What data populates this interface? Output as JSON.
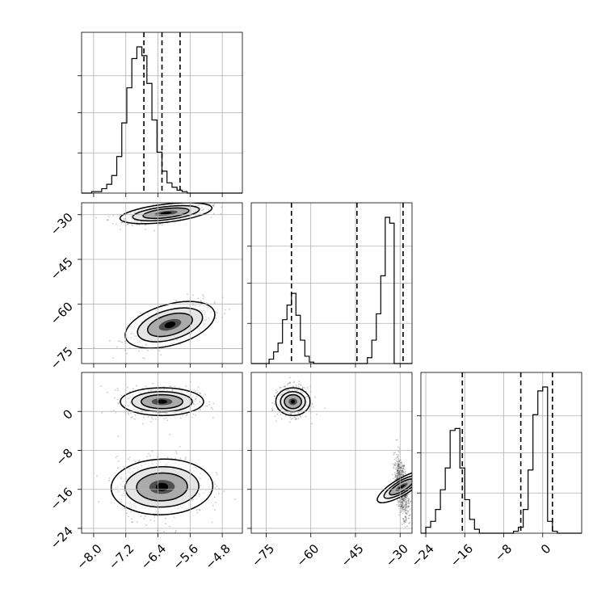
{
  "chart_data": {
    "type": "corner",
    "title": "",
    "parameters": [
      {
        "ticks": [
          -8.0,
          -7.2,
          -6.4,
          -5.6,
          -4.8
        ],
        "range": [
          -8.3,
          -4.3
        ]
      },
      {
        "ticks": [
          -75,
          -60,
          -45,
          -30
        ],
        "range": [
          -80,
          -26
        ]
      },
      {
        "ticks": [
          -24,
          -16,
          -8,
          0
        ],
        "range": [
          -25,
          8
        ]
      }
    ],
    "tick_labels": {
      "p0": [
        "−8.0",
        "−7.2",
        "−6.4",
        "−5.6",
        "−4.8"
      ],
      "p1": [
        "−75",
        "−60",
        "−45",
        "−30"
      ],
      "p2": [
        "−24",
        "−16",
        "−8",
        "0"
      ]
    },
    "quantiles": {
      "p0": [
        -6.75,
        -6.3,
        -5.85
      ],
      "p1": [
        -66.5,
        -44.5,
        -29.0
      ],
      "p2": [
        -16.5,
        -4.5,
        2.0
      ]
    },
    "histograms": [
      {
        "param": 0,
        "bins": [
          -8.3,
          -4.3
        ],
        "counts": [
          0,
          0,
          1,
          1,
          3,
          6,
          12,
          25,
          48,
          72,
          92,
          100,
          94,
          75,
          50,
          28,
          15,
          7,
          4,
          2,
          1,
          0,
          0,
          0,
          0,
          0,
          0,
          0,
          0,
          0,
          0,
          0
        ]
      },
      {
        "param": 1,
        "bins": [
          -80,
          -26
        ],
        "counts": [
          0,
          0,
          0,
          0,
          3,
          8,
          14,
          30,
          40,
          48,
          33,
          16,
          5,
          1,
          0,
          0,
          0,
          0,
          0,
          0,
          0,
          0,
          0,
          0,
          0,
          0,
          4,
          16,
          34,
          60,
          100,
          96,
          0,
          0,
          0,
          0
        ]
      },
      {
        "param": 2,
        "bins": [
          -25,
          8
        ],
        "counts": [
          0,
          3,
          6,
          12,
          22,
          33,
          52,
          53,
          33,
          17,
          7,
          2,
          0,
          0,
          0,
          0,
          0,
          0,
          0,
          1,
          3,
          12,
          32,
          60,
          72,
          74,
          6,
          1,
          0,
          0,
          0,
          0,
          0
        ]
      }
    ],
    "scatter_panels": [
      {
        "x": 0,
        "y": 1,
        "clusters": [
          {
            "center": [
              -6.2,
              -29.5
            ],
            "sigma": [
              0.5,
              1.6
            ],
            "corr": 0.55,
            "weight": 0.55
          },
          {
            "center": [
              -6.1,
              -67
            ],
            "sigma": [
              0.5,
              3.6
            ],
            "corr": 0.6,
            "weight": 0.45
          }
        ]
      },
      {
        "x": 0,
        "y": 2,
        "clusters": [
          {
            "center": [
              -6.3,
              2.0
            ],
            "sigma": [
              0.45,
              1.5
            ],
            "corr": 0.0,
            "weight": 0.5
          },
          {
            "center": [
              -6.3,
              -15.5
            ],
            "sigma": [
              0.55,
              3.0
            ],
            "corr": 0.05,
            "weight": 0.5
          }
        ]
      },
      {
        "x": 1,
        "y": 2,
        "clusters": [
          {
            "center": [
              -66,
              2.0
            ],
            "sigma": [
              2.5,
              1.5
            ],
            "corr": 0.0,
            "weight": 0.5
          },
          {
            "center": [
              -29.5,
              -15.5
            ],
            "sigma": [
              1.2,
              3.0
            ],
            "corr": -0.55,
            "weight": 0.5
          }
        ]
      }
    ],
    "grid": true
  }
}
